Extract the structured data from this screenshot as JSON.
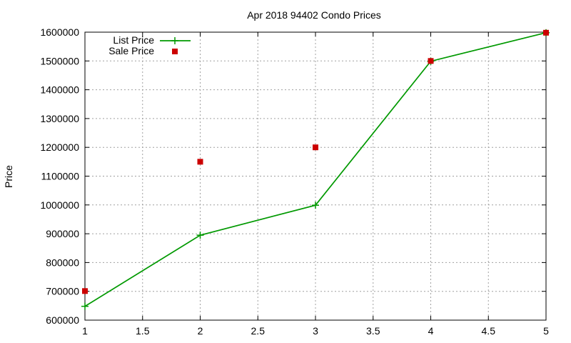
{
  "chart_data": {
    "type": "line",
    "title": "Apr 2018 94402 Condo Prices",
    "xlabel": "",
    "ylabel": "Price",
    "xlim": [
      1,
      5
    ],
    "ylim": [
      600000,
      1600000
    ],
    "xticks": [
      1,
      1.5,
      2,
      2.5,
      3,
      3.5,
      4,
      4.5,
      5
    ],
    "yticks": [
      600000,
      700000,
      800000,
      900000,
      1000000,
      1100000,
      1200000,
      1300000,
      1400000,
      1500000,
      1600000
    ],
    "grid": true,
    "legend_position": "top-left",
    "series": [
      {
        "name": "List Price",
        "style": "lines+points",
        "color": "#009900",
        "x": [
          1,
          2,
          3,
          4,
          5
        ],
        "y": [
          648000,
          895000,
          999000,
          1499000,
          1598000
        ]
      },
      {
        "name": "Sale Price",
        "style": "points",
        "color": "#cc0000",
        "x": [
          1,
          2,
          3,
          4,
          5
        ],
        "y": [
          701000,
          1150000,
          1200000,
          1500000,
          1598000
        ]
      }
    ]
  }
}
